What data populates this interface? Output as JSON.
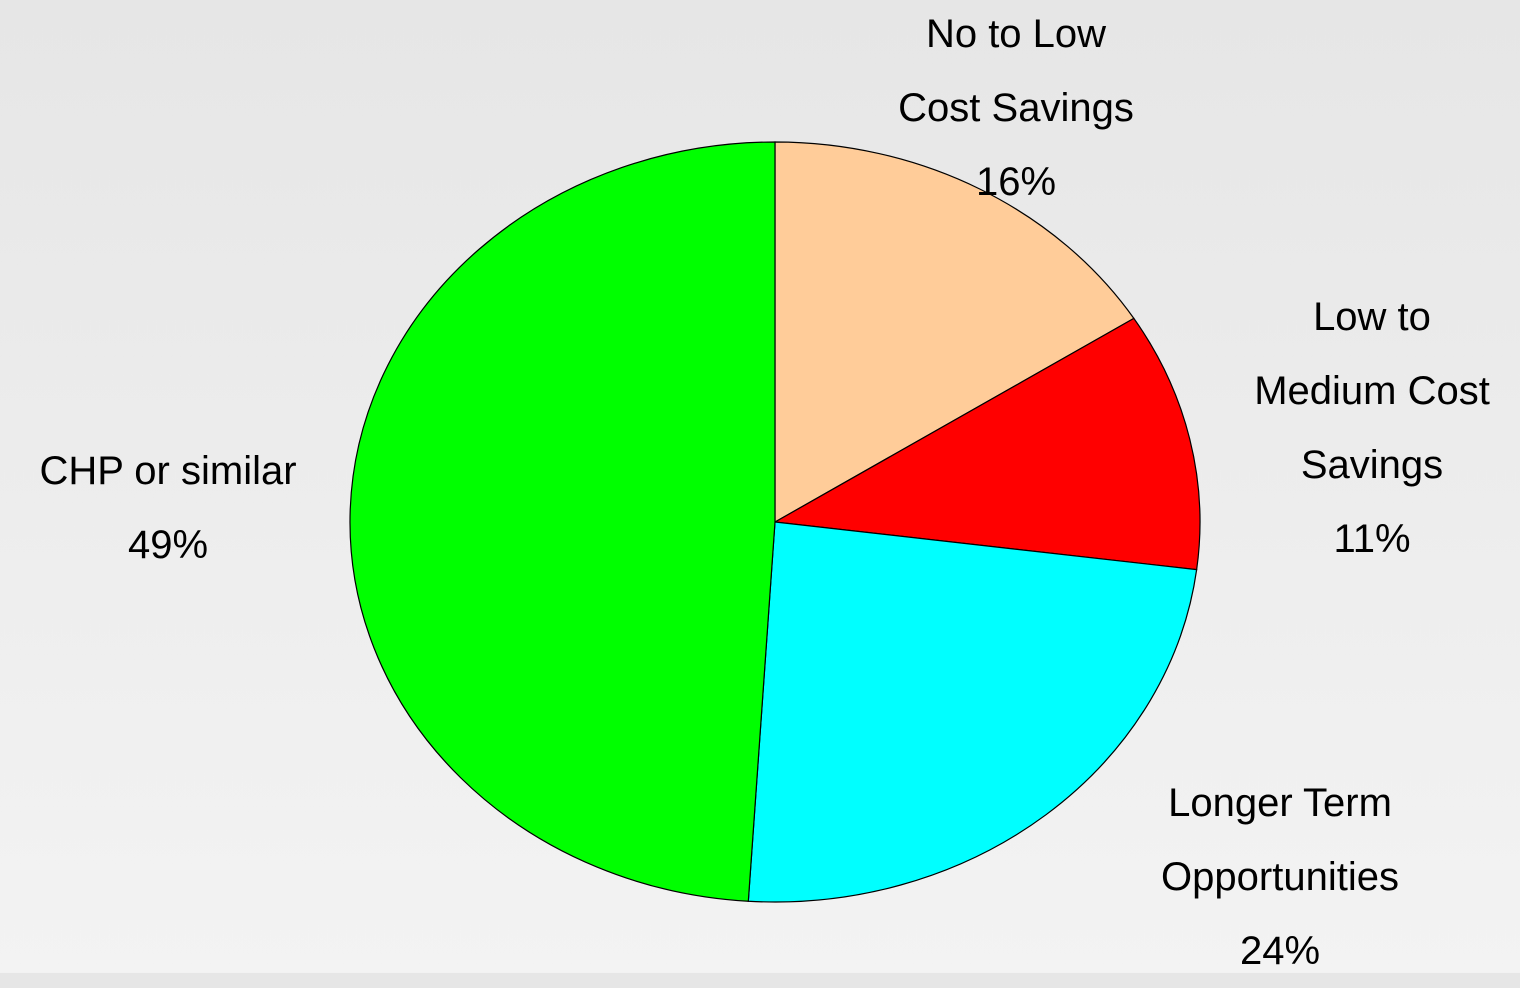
{
  "chart_data": {
    "type": "pie",
    "slices": [
      {
        "name": "No to Low Cost Savings",
        "label_lines": [
          "No to Low",
          "Cost Savings"
        ],
        "value": 16,
        "value_label": "16%",
        "color": "#ffcc99"
      },
      {
        "name": "Low to Medium Cost Savings",
        "label_lines": [
          "Low to",
          "Medium Cost",
          "Savings"
        ],
        "value": 11,
        "value_label": "11%",
        "color": "#ff0000"
      },
      {
        "name": "Longer Term Opportunities",
        "label_lines": [
          "Longer Term",
          "Opportunities"
        ],
        "value": 24,
        "value_label": "24%",
        "color": "#00ffff"
      },
      {
        "name": "CHP or similar",
        "label_lines": [
          "CHP or similar"
        ],
        "value": 49,
        "value_label": "49%",
        "color": "#00ff00"
      }
    ],
    "start_angle": "12 o'clock",
    "direction": "clockwise",
    "legend": "none"
  }
}
